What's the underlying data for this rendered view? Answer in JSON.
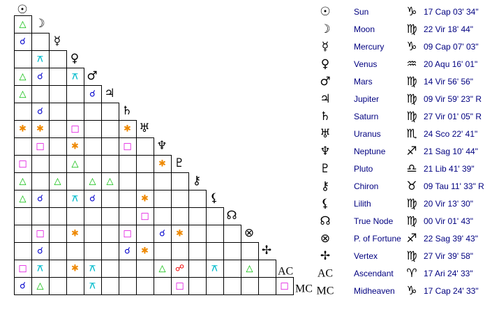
{
  "planets": [
    {
      "glyph": "☉",
      "name": "Sun",
      "sign": "♑",
      "position": "17 Cap 03' 34\""
    },
    {
      "glyph": "☽",
      "name": "Moon",
      "sign": "♍",
      "position": "22 Vir 18' 44\""
    },
    {
      "glyph": "☿",
      "name": "Mercury",
      "sign": "♑",
      "position": "09 Cap 07' 03\""
    },
    {
      "glyph": "♀",
      "name": "Venus",
      "sign": "♒",
      "position": "20 Aqu 16' 01\""
    },
    {
      "glyph": "♂",
      "name": "Mars",
      "sign": "♍",
      "position": "14 Vir 56' 56\""
    },
    {
      "glyph": "♃",
      "name": "Jupiter",
      "sign": "♍",
      "position": "09 Vir 59' 23\" R"
    },
    {
      "glyph": "♄",
      "name": "Saturn",
      "sign": "♍",
      "position": "27 Vir 01' 05\" R"
    },
    {
      "glyph": "♅",
      "name": "Uranus",
      "sign": "♏",
      "position": "24 Sco 22' 41\""
    },
    {
      "glyph": "♆",
      "name": "Neptune",
      "sign": "♐",
      "position": "21 Sag 10' 44\""
    },
    {
      "glyph": "♇",
      "name": "Pluto",
      "sign": "♎",
      "position": "21 Lib 41' 39\""
    },
    {
      "glyph": "⚷",
      "name": "Chiron",
      "sign": "♉",
      "position": "09 Tau 11' 33\" R"
    },
    {
      "glyph": "⚸",
      "name": "Lilith",
      "sign": "♍",
      "position": "20 Vir 13' 30\""
    },
    {
      "glyph": "☊",
      "name": "True Node",
      "sign": "♍",
      "position": "00 Vir 01' 43\""
    },
    {
      "glyph": "⊗",
      "name": "P. of Fortune",
      "sign": "♐",
      "position": "22 Sag 39' 43\""
    },
    {
      "glyph": "✢",
      "name": "Vertex",
      "sign": "♍",
      "position": "27 Vir 39' 58\""
    },
    {
      "glyph": "AC",
      "name": "Ascendant",
      "sign": "♈",
      "position": "17 Ari 24' 33\""
    },
    {
      "glyph": "MC",
      "name": "Midheaven",
      "sign": "♑",
      "position": "17 Cap 24' 33\""
    }
  ],
  "aspect_colors": {
    "△": "#00bb00",
    "□": "#dd00dd",
    "✱": "#ee8800",
    "☌": "#0000cc",
    "⚻": "#00bbcc",
    "☍": "#ee0000"
  },
  "grid": [
    [],
    [
      "△"
    ],
    [
      "☌",
      null
    ],
    [
      null,
      "⚻",
      null
    ],
    [
      "△",
      "☌",
      null,
      "⚻"
    ],
    [
      "△",
      null,
      null,
      null,
      "☌"
    ],
    [
      null,
      "☌",
      null,
      null,
      null,
      null
    ],
    [
      "✱",
      "✱",
      null,
      "□",
      null,
      null,
      "✱"
    ],
    [
      null,
      "□",
      null,
      "✱",
      null,
      null,
      "□",
      null
    ],
    [
      "□",
      null,
      null,
      "△",
      null,
      null,
      null,
      null,
      "✱"
    ],
    [
      "△",
      null,
      "△",
      null,
      "△",
      "△",
      null,
      null,
      null,
      null
    ],
    [
      "△",
      "☌",
      null,
      "⚻",
      "☌",
      null,
      null,
      "✱",
      null,
      null,
      null
    ],
    [
      null,
      null,
      null,
      null,
      null,
      null,
      null,
      "□",
      null,
      null,
      null,
      null
    ],
    [
      null,
      "□",
      null,
      "✱",
      null,
      null,
      "□",
      null,
      "☌",
      "✱",
      null,
      null,
      null
    ],
    [
      null,
      "☌",
      null,
      null,
      null,
      null,
      "☌",
      "✱",
      null,
      null,
      null,
      null,
      null,
      null
    ],
    [
      "□",
      "⚻",
      null,
      "✱",
      "⚻",
      null,
      null,
      null,
      "△",
      "☍",
      null,
      "⚻",
      null,
      "△",
      null
    ],
    [
      "☌",
      "△",
      null,
      null,
      "⚻",
      null,
      null,
      null,
      null,
      "□",
      null,
      null,
      null,
      null,
      null,
      "□"
    ]
  ]
}
